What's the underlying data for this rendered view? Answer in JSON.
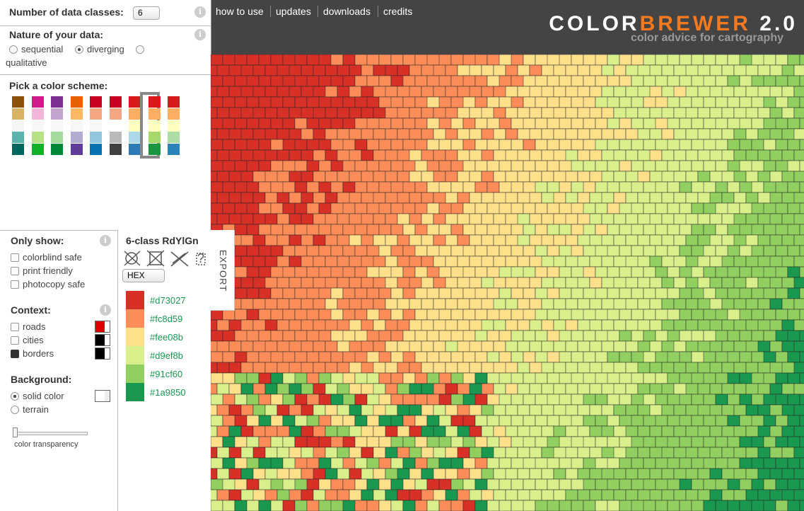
{
  "header": {
    "nav": [
      "how to use",
      "updates",
      "downloads",
      "credits"
    ],
    "logo": {
      "part1": "COLOR",
      "part2": "BREWER",
      "part3": "2.0"
    },
    "subtitle": "color advice for cartography"
  },
  "controls": {
    "classes_label": "Number of data classes:",
    "classes_value": "6",
    "info": "i",
    "nature_label": "Nature of your data:",
    "nature_options": [
      "sequential",
      "diverging",
      "qualitative"
    ],
    "nature_selected": 1,
    "scheme_label": "Pick a color scheme:",
    "schemes": [
      [
        "#8c510a",
        "#d8b365",
        "#f5f5f5",
        "#5ab4ac",
        "#01665e"
      ],
      [
        "#d01c8b",
        "#f1b6da",
        "#f7f7f7",
        "#b8e186",
        "#14b02a"
      ],
      [
        "#7b3294",
        "#c2a5cf",
        "#f7f7f7",
        "#a6dba0",
        "#008837"
      ],
      [
        "#e66101",
        "#fdb863",
        "#f7f7f7",
        "#b2abd2",
        "#5e3c99"
      ],
      [
        "#ca0020",
        "#f4a582",
        "#f7f7f7",
        "#92c5de",
        "#0571b0"
      ],
      [
        "#ca0020",
        "#f4a582",
        "#ffffff",
        "#bababa",
        "#404040"
      ],
      [
        "#d7191c",
        "#fdae61",
        "#ffffbf",
        "#abd9e9",
        "#2c7bb6"
      ],
      [
        "#d7191c",
        "#fdae61",
        "#ffffbf",
        "#a6d96a",
        "#1a9641"
      ],
      [
        "#d7191c",
        "#fdae61",
        "#ffffbf",
        "#abdda4",
        "#2b83ba"
      ]
    ],
    "selected_scheme": 7,
    "only_show_label": "Only show:",
    "only_show_options": [
      "colorblind safe",
      "print friendly",
      "photocopy safe"
    ],
    "context_label": "Context:",
    "context_options": [
      {
        "label": "roads",
        "checked": false,
        "color": "#e00000"
      },
      {
        "label": "cities",
        "checked": false,
        "color": "#000000"
      },
      {
        "label": "borders",
        "checked": true,
        "color": "#000000"
      }
    ],
    "background_label": "Background:",
    "background_options": [
      "solid color",
      "terrain"
    ],
    "background_selected": 0,
    "background_color": "#ffffff",
    "transparency_label": "color transparency"
  },
  "legend": {
    "title": "6-class RdYlGn",
    "format": "HEX",
    "export": "EXPORT",
    "help": "?",
    "colors": [
      "#d73027",
      "#fc8d59",
      "#fee08b",
      "#d9ef8b",
      "#91cf60",
      "#1a9850"
    ]
  }
}
